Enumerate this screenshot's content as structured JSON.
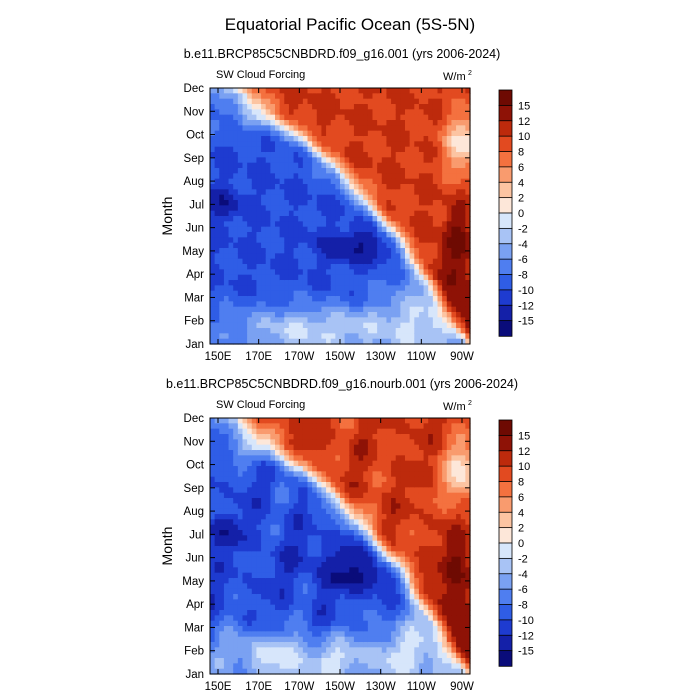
{
  "figure": {
    "title": "Equatorial Pacific Ocean (5S-5N)"
  },
  "chart_data": [
    {
      "type": "heatmap",
      "title": "b.e11.BRCP85C5CNBDRD.f09_g16.001 (yrs 2006-2024)",
      "left_label": "SW Cloud Forcing",
      "units_label": "W/m",
      "units_superscript": "2",
      "ylabel": "Month",
      "x_ticks": [
        "150E",
        "170E",
        "170W",
        "150W",
        "130W",
        "110W",
        "90W"
      ],
      "y_ticks": [
        "Jan",
        "Feb",
        "Mar",
        "Apr",
        "May",
        "Jun",
        "Jul",
        "Aug",
        "Sep",
        "Oct",
        "Nov",
        "Dec"
      ],
      "colorbar_ticks": [
        "-15",
        "-12",
        "-10",
        "-8",
        "-6",
        "-4",
        "-2",
        "0",
        "2",
        "4",
        "6",
        "8",
        "10",
        "12",
        "15"
      ],
      "variant": 0
    },
    {
      "type": "heatmap",
      "title": "b.e11.BRCP85C5CNBDRD.f09_g16.nourb.001 (yrs 2006-2024)",
      "left_label": "SW Cloud Forcing",
      "units_label": "W/m",
      "units_superscript": "2",
      "ylabel": "Month",
      "x_ticks": [
        "150E",
        "170E",
        "170W",
        "150W",
        "130W",
        "110W",
        "90W"
      ],
      "y_ticks": [
        "Jan",
        "Feb",
        "Mar",
        "Apr",
        "May",
        "Jun",
        "Jul",
        "Aug",
        "Sep",
        "Oct",
        "Nov",
        "Dec"
      ],
      "colorbar_ticks": [
        "-15",
        "-12",
        "-10",
        "-8",
        "-6",
        "-4",
        "-2",
        "0",
        "2",
        "4",
        "6",
        "8",
        "10",
        "12",
        "15"
      ],
      "variant": 1
    }
  ],
  "colors": {
    "levels": [
      "#0a0c7a",
      "#1420a8",
      "#1e3bd0",
      "#2f5de6",
      "#4f7ef0",
      "#7aa1f2",
      "#a8c3f5",
      "#d7e6fb",
      "#fde7d9",
      "#fcc4a2",
      "#f99b6e",
      "#f4713f",
      "#e24a20",
      "#bd2a0c",
      "#8e1206",
      "#6e0a02"
    ]
  }
}
